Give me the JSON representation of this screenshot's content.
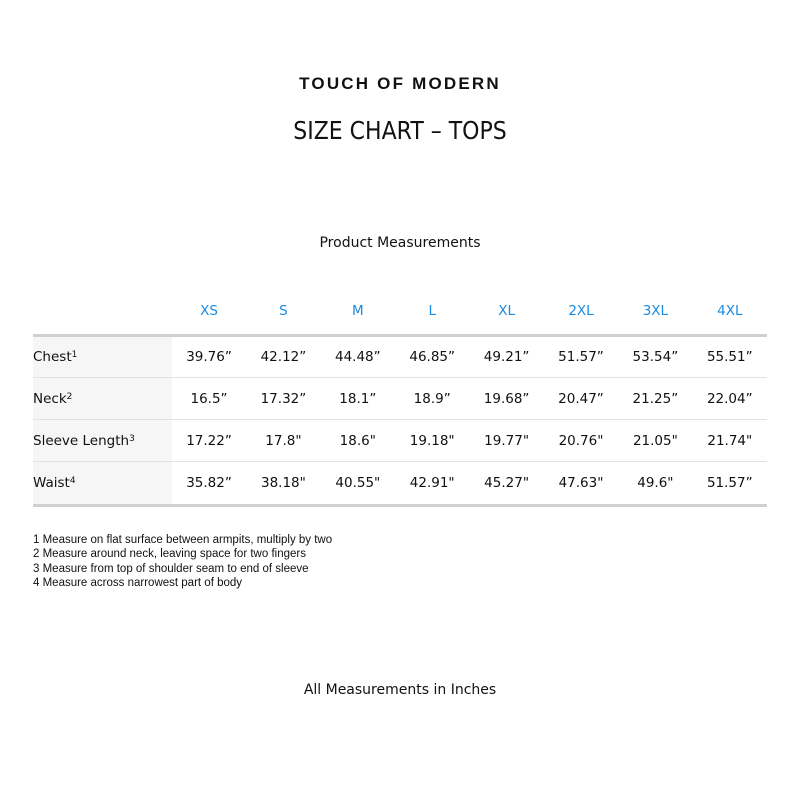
{
  "brand": "TOUCH OF MODERN",
  "title": "SIZE CHART – TOPS",
  "subtitle": "Product Measurements",
  "colors": {
    "size_header": "#1a8be0",
    "label_bg": "#f6f6f6"
  },
  "table": {
    "sizes": [
      "XS",
      "S",
      "M",
      "L",
      "XL",
      "2XL",
      "3XL",
      "4XL"
    ],
    "rows": [
      {
        "label": "Chest",
        "note": "1",
        "values": [
          "39.76”",
          "42.12”",
          "44.48”",
          "46.85”",
          "49.21”",
          "51.57”",
          "53.54”",
          "55.51”"
        ]
      },
      {
        "label": "Neck",
        "note": "2",
        "values": [
          "16.5”",
          "17.32”",
          "18.1”",
          "18.9”",
          "19.68”",
          "20.47”",
          "21.25”",
          "22.04”"
        ]
      },
      {
        "label": "Sleeve Length",
        "note": "3",
        "values": [
          "17.22”",
          "17.8\"",
          "18.6\"",
          "19.18\"",
          "19.77\"",
          "20.76\"",
          "21.05\"",
          "21.74\""
        ]
      },
      {
        "label": "Waist",
        "note": "4",
        "values": [
          "35.82”",
          "38.18\"",
          "40.55\"",
          "42.91\"",
          "45.27\"",
          "47.63\"",
          "49.6\"",
          "51.57”"
        ]
      }
    ]
  },
  "notes": [
    "1 Measure on flat surface between armpits, multiply by two",
    "2 Measure around neck, leaving space for two fingers",
    "3 Measure from top of shoulder seam to end of sleeve",
    "4 Measure across narrowest part of body"
  ],
  "footer": "All Measurements in Inches"
}
